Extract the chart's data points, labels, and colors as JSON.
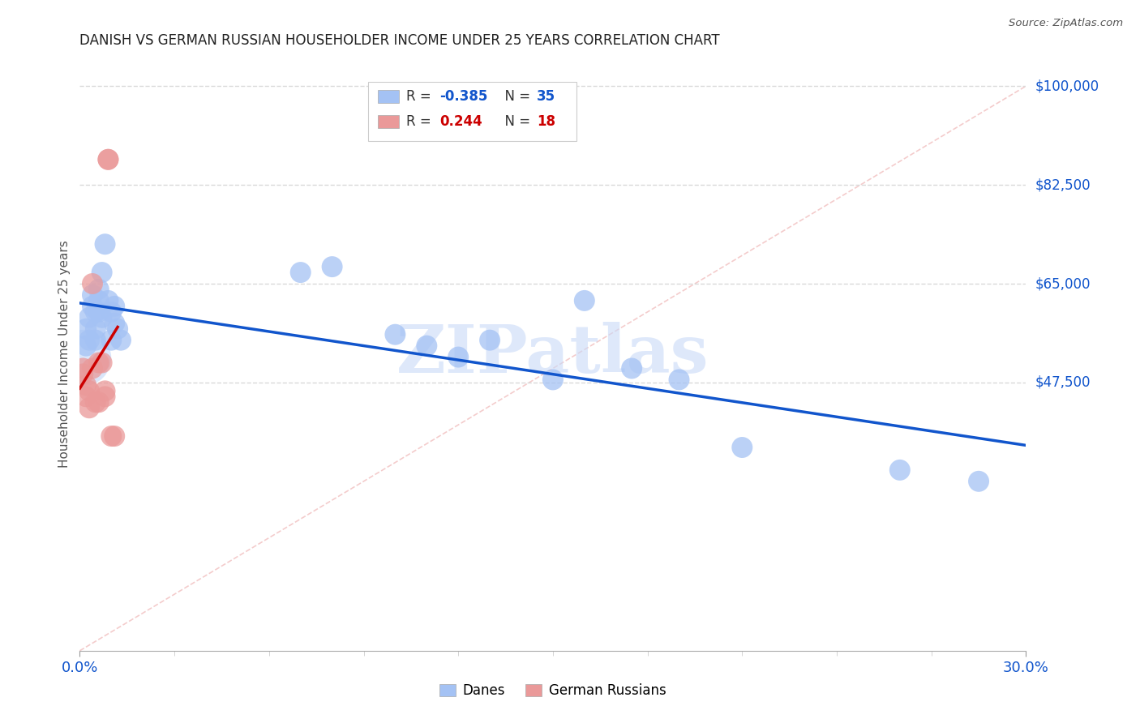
{
  "title": "DANISH VS GERMAN RUSSIAN HOUSEHOLDER INCOME UNDER 25 YEARS CORRELATION CHART",
  "source": "Source: ZipAtlas.com",
  "ylabel": "Householder Income Under 25 years",
  "x_min": 0.0,
  "x_max": 0.3,
  "y_min": 0,
  "y_max": 105000,
  "y_ticks": [
    47500,
    65000,
    82500,
    100000
  ],
  "y_tick_labels": [
    "$47,500",
    "$65,000",
    "$82,500",
    "$100,000"
  ],
  "R_danes": -0.385,
  "N_danes": 35,
  "R_german": 0.244,
  "N_german": 18,
  "danes_color": "#a4c2f4",
  "danish_fill": "#a4c2f4",
  "german_color": "#ea9999",
  "german_fill": "#ea9999",
  "danes_line_color": "#1155cc",
  "german_line_color": "#cc0000",
  "diag_line_color": "#f4cccc",
  "right_label_color": "#1155cc",
  "watermark_color": "#c9daf8",
  "background_color": "#ffffff",
  "grid_color": "#d9d9d9",
  "danes_x": [
    0.002,
    0.002,
    0.003,
    0.003,
    0.004,
    0.004,
    0.005,
    0.005,
    0.005,
    0.006,
    0.006,
    0.006,
    0.007,
    0.007,
    0.008,
    0.009,
    0.01,
    0.01,
    0.011,
    0.011,
    0.012,
    0.013,
    0.07,
    0.08,
    0.1,
    0.11,
    0.12,
    0.13,
    0.15,
    0.16,
    0.175,
    0.19,
    0.21,
    0.26,
    0.285
  ],
  "danes_y": [
    57000,
    54000,
    59000,
    55000,
    61000,
    63000,
    60000,
    57000,
    55000,
    62000,
    64000,
    60000,
    67000,
    59000,
    72000,
    62000,
    60000,
    55000,
    61000,
    58000,
    57000,
    55000,
    67000,
    68000,
    56000,
    54000,
    52000,
    55000,
    48000,
    62000,
    50000,
    48000,
    36000,
    32000,
    30000
  ],
  "german_x": [
    0.001,
    0.001,
    0.002,
    0.002,
    0.003,
    0.003,
    0.004,
    0.004,
    0.005,
    0.006,
    0.006,
    0.007,
    0.008,
    0.008,
    0.009,
    0.009,
    0.01,
    0.011
  ],
  "german_y": [
    50000,
    49000,
    45000,
    47000,
    46000,
    43000,
    65000,
    50000,
    44000,
    44000,
    51000,
    51000,
    45000,
    46000,
    87000,
    87000,
    38000,
    38000
  ]
}
